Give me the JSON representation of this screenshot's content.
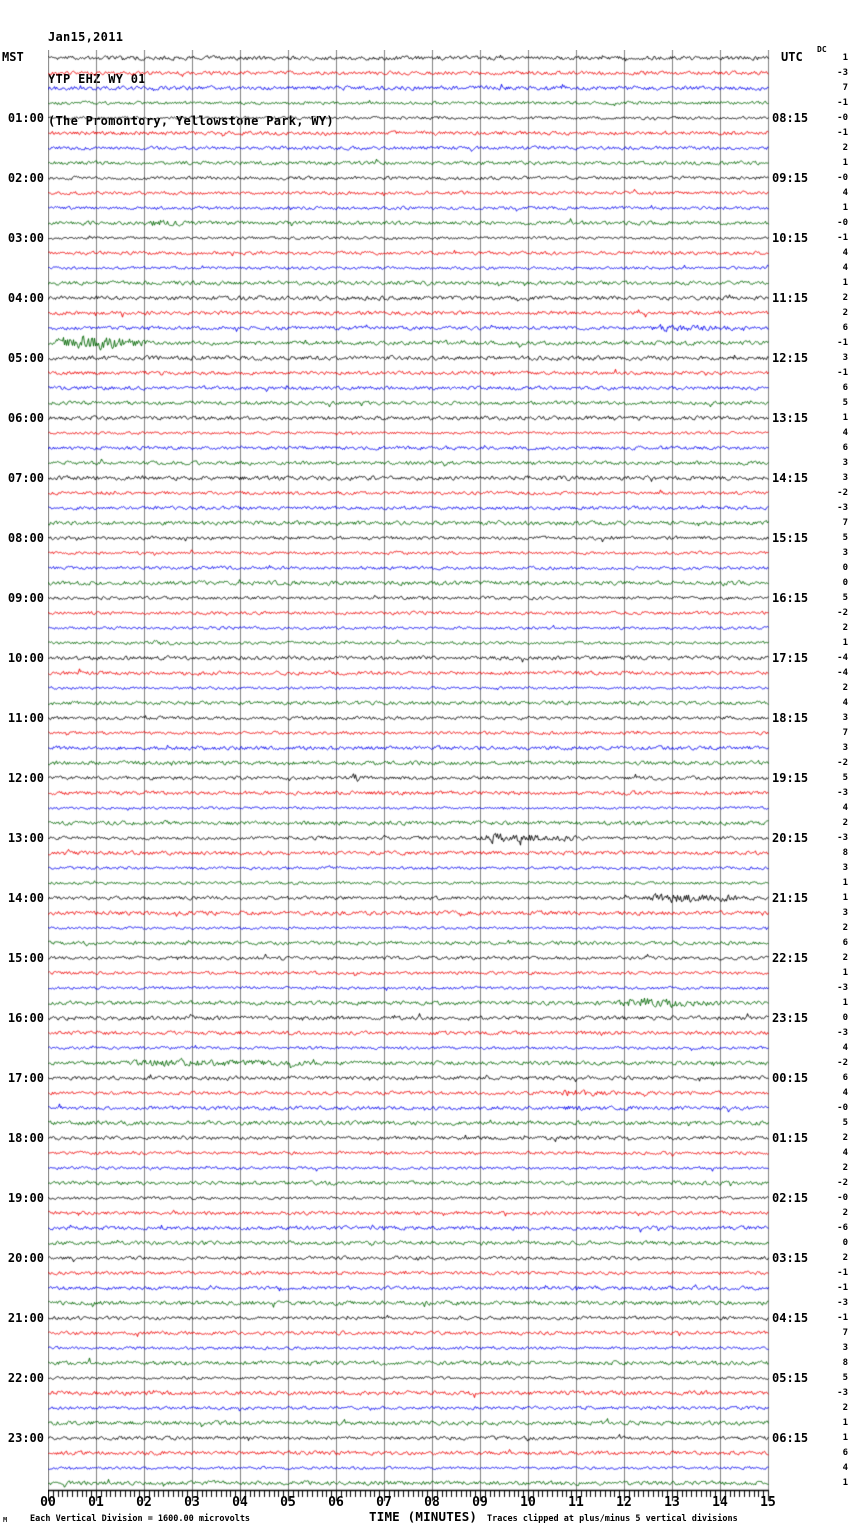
{
  "header": {
    "date": "Jan15,2011",
    "station": "YTP EHZ WY 01",
    "location": "(The Promontory, Yellowstone Park, WY)"
  },
  "footer": {
    "watermark": "M"
  },
  "chart_data": {
    "type": "line",
    "subtype": "helicorder-seismogram",
    "title": "YTP EHZ WY 01 (The Promontory, Yellowstone Park, WY) Jan15,2011",
    "date": "Jan15,2011",
    "station": "YTP EHZ WY 01",
    "station_location": "(The Promontory, Yellowstone Park, WY)",
    "x_axis": {
      "title": "TIME (MINUTES)",
      "ticks": [
        "00",
        "01",
        "02",
        "03",
        "04",
        "05",
        "06",
        "07",
        "08",
        "09",
        "10",
        "11",
        "12",
        "13",
        "14",
        "15"
      ],
      "minutes_per_row": 15,
      "minor_tick_minutes": 0.1
    },
    "left_axis": {
      "label": "MST",
      "hour_labels": [
        "01:00",
        "02:00",
        "03:00",
        "04:00",
        "05:00",
        "06:00",
        "07:00",
        "08:00",
        "09:00",
        "10:00",
        "11:00",
        "12:00",
        "13:00",
        "14:00",
        "15:00",
        "16:00",
        "17:00",
        "18:00",
        "19:00",
        "20:00",
        "21:00",
        "22:00",
        "23:00"
      ]
    },
    "right_axis": {
      "label": "UTC",
      "hour_labels": [
        "08:15",
        "09:15",
        "10:15",
        "11:15",
        "12:15",
        "13:15",
        "14:15",
        "15:15",
        "16:15",
        "17:15",
        "18:15",
        "19:15",
        "20:15",
        "21:15",
        "22:15",
        "23:15",
        "00:15",
        "01:15",
        "02:15",
        "03:15",
        "04:15",
        "05:15",
        "06:15"
      ]
    },
    "dc_header": "DC",
    "rows": 96,
    "rows_per_hour": 4,
    "trace_color_cycle": [
      "#000000",
      "#ee0000",
      "#0000ee",
      "#006600"
    ],
    "grid_color": "#808080",
    "axis_color": "#000000",
    "dc_offsets": [
      "1",
      "-3",
      "7",
      "-1",
      "-0",
      "-1",
      "2",
      "1",
      "-0",
      "4",
      "1",
      "-0",
      "-1",
      "4",
      "4",
      "1",
      "2",
      "2",
      "6",
      "-1",
      "3",
      "-1",
      "6",
      "5",
      "1",
      "4",
      "6",
      "3",
      "3",
      "-2",
      "-3",
      "7",
      "5",
      "3",
      "0",
      "0",
      "5",
      "-2",
      "2",
      "1",
      "-4",
      "-4",
      "2",
      "4",
      "3",
      "7",
      "3",
      "-2",
      "5",
      "-3",
      "4",
      "2",
      "-3",
      "8",
      "3",
      "1",
      "1",
      "3",
      "2",
      "6",
      "2",
      "1",
      "-3",
      "1",
      "0",
      "-3",
      "4",
      "-2",
      "6",
      "4",
      "-0",
      "5",
      "2",
      "4",
      "2",
      "-2",
      "-0",
      "2",
      "-6",
      "0",
      "2",
      "-1",
      "-1",
      "-3",
      "-1",
      "7",
      "3",
      "8",
      "5",
      "-3",
      "2",
      "1",
      "1",
      "6",
      "4",
      "1"
    ],
    "scale_note_left": "Each Vertical Division = 1600.00 microvolts",
    "scale_note_right": "Traces clipped at plus/minus 5 vertical divisions",
    "events": [
      {
        "row": 11,
        "row_time_mst": "02:45",
        "start_min": 2.1,
        "end_min": 2.8,
        "relative_amplitude": 2.5
      },
      {
        "row": 18,
        "row_time_mst": "04:30",
        "start_min": 12.4,
        "end_min": 14.5,
        "relative_amplitude": 2.2
      },
      {
        "row": 19,
        "row_time_mst": "04:45",
        "start_min": 0.05,
        "end_min": 2.2,
        "relative_amplitude": 4.5
      },
      {
        "row": 39,
        "row_time_mst": "09:45",
        "start_min": 2.1,
        "end_min": 2.6,
        "relative_amplitude": 1.9
      },
      {
        "row": 48,
        "row_time_mst": "12:00",
        "start_min": 6.3,
        "end_min": 6.6,
        "relative_amplitude": 2.6
      },
      {
        "row": 52,
        "row_time_mst": "13:00",
        "start_min": 8.8,
        "end_min": 11.4,
        "relative_amplitude": 3.4
      },
      {
        "row": 56,
        "row_time_mst": "14:00",
        "start_min": 12.3,
        "end_min": 14.8,
        "relative_amplitude": 3.2
      },
      {
        "row": 63,
        "row_time_mst": "15:45",
        "start_min": 11.8,
        "end_min": 14.0,
        "relative_amplitude": 3.0
      },
      {
        "row": 67,
        "row_time_mst": "16:45",
        "start_min": 1.5,
        "end_min": 6.0,
        "relative_amplitude": 2.2
      },
      {
        "row": 69,
        "row_time_mst": "17:15",
        "start_min": 10.6,
        "end_min": 11.9,
        "relative_amplitude": 2.2
      },
      {
        "row": 70,
        "row_time_mst": "17:30",
        "start_min": 10.7,
        "end_min": 11.3,
        "relative_amplitude": 1.6
      }
    ],
    "noise_seed": 20110115
  }
}
